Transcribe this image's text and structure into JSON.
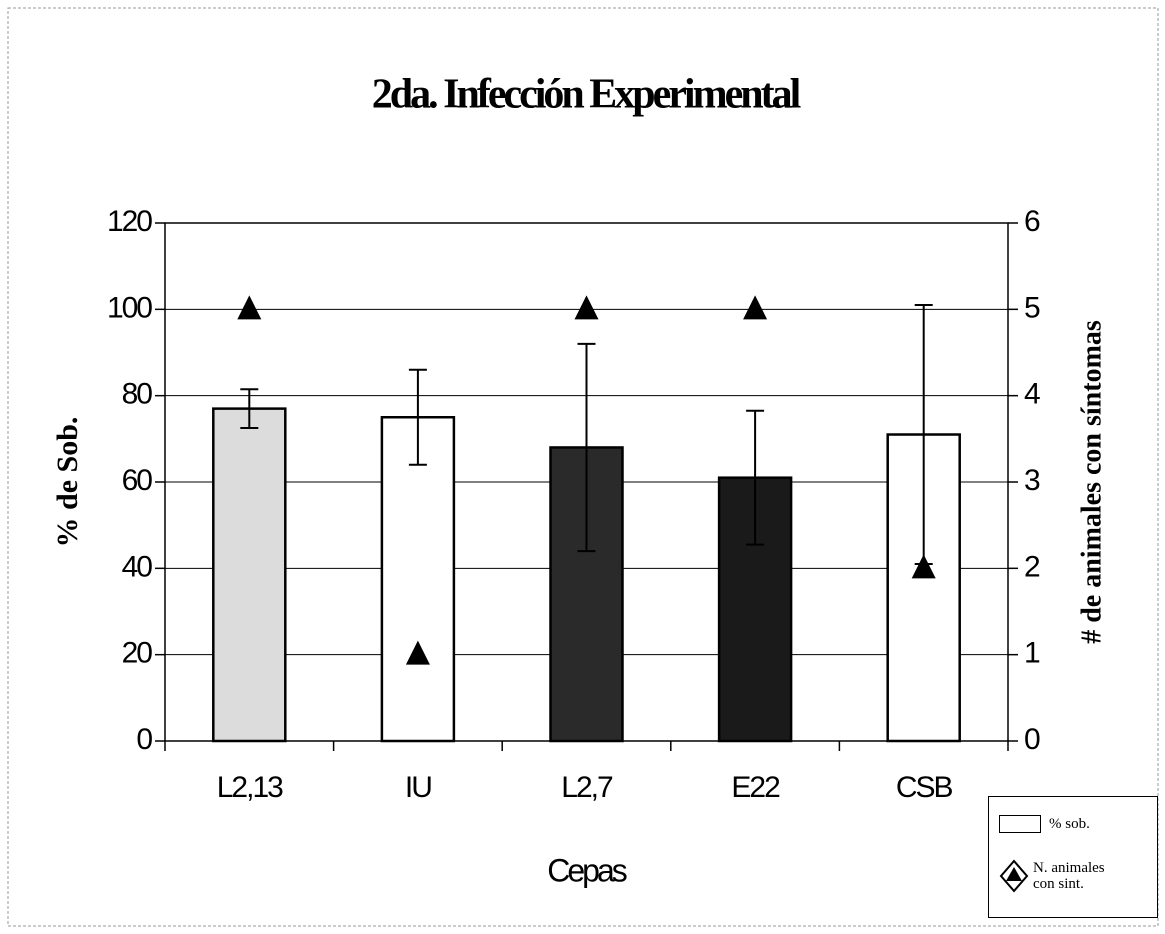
{
  "chart_data": {
    "type": "bar",
    "title": "2da. Infección Experimental",
    "x_label": "Cepas",
    "y_label": "% de Sob.",
    "y2_label": "# de animales con síntomas",
    "categories": [
      "L2,13",
      "IU",
      "L2,7",
      "E22",
      "CSB"
    ],
    "series": [
      {
        "name": "% sob.",
        "values": [
          77,
          75,
          68,
          61,
          71
        ],
        "errors": [
          4.5,
          11,
          24,
          15.5,
          30
        ],
        "colors": [
          "#dcdcdc",
          "#ffffff",
          "#2a2a2a",
          "#1a1a1a",
          "#ffffff"
        ]
      },
      {
        "name": "N. animales con sint.",
        "axis": "y2",
        "color": "#000000",
        "values": [
          5,
          1,
          5,
          5,
          2
        ]
      }
    ],
    "ylim": [
      0,
      120
    ],
    "yticks": [
      0,
      20,
      40,
      60,
      80,
      100,
      120
    ],
    "y2lim": [
      0,
      6
    ],
    "y2ticks": [
      0,
      1,
      2,
      3,
      4,
      5,
      6
    ],
    "grid": true
  }
}
